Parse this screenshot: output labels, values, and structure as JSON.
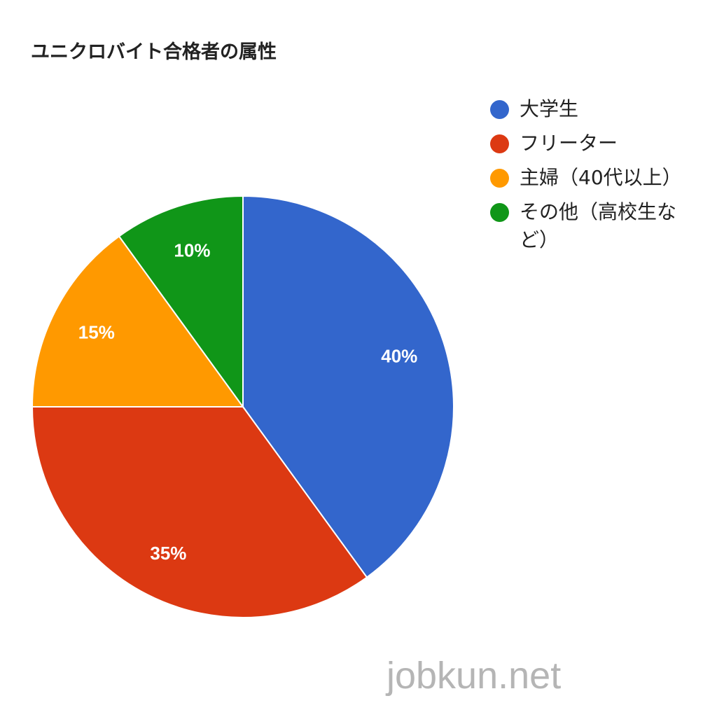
{
  "chart_data": {
    "type": "pie",
    "title": "ユニクロバイト合格者の属性",
    "slices": [
      {
        "label": "大学生",
        "value": 40,
        "value_label": "40%",
        "color": "#3366cc"
      },
      {
        "label": "フリーター",
        "value": 35,
        "value_label": "35%",
        "color": "#dc3912"
      },
      {
        "label": "主婦（40代以上）",
        "value": 15,
        "value_label": "15%",
        "color": "#ff9900"
      },
      {
        "label": "その他（高校生など）",
        "value": 10,
        "value_label": "10%",
        "color": "#109618"
      }
    ],
    "legend_position": "right"
  },
  "watermark": "jobkun.net"
}
